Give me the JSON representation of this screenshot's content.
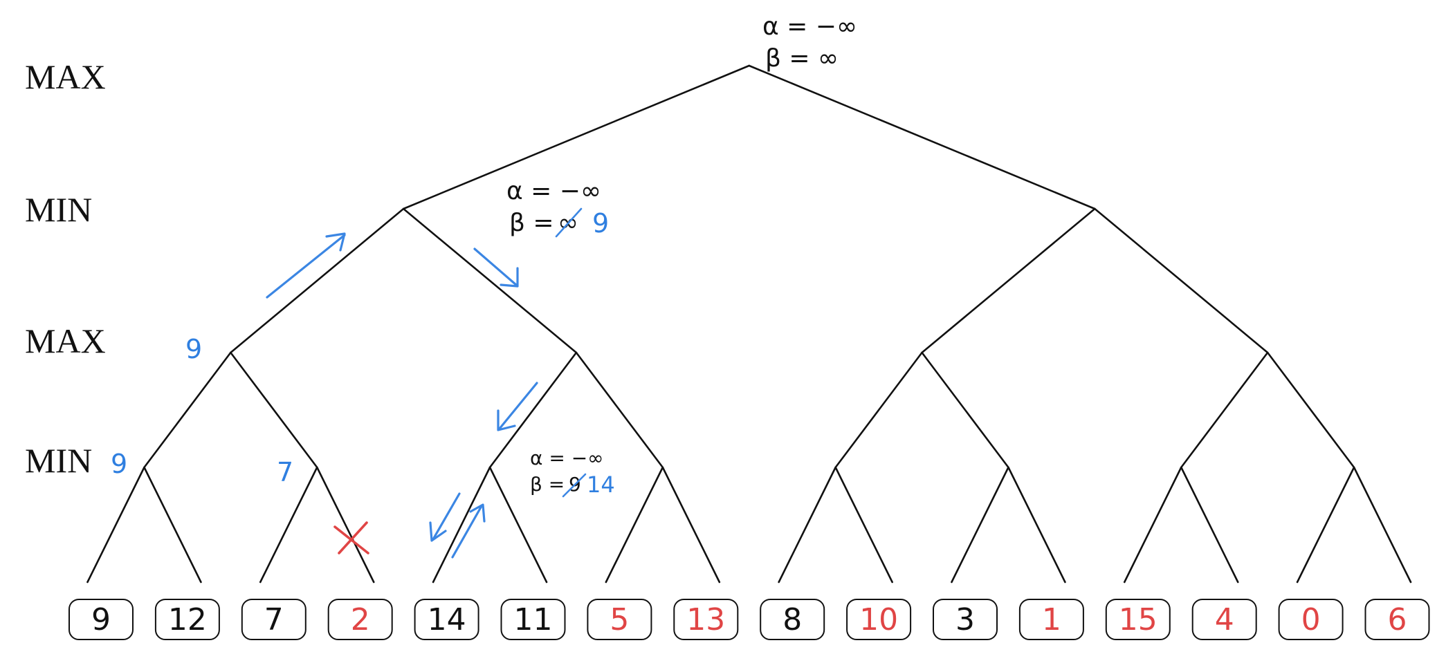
{
  "levels": [
    "MAX",
    "MIN",
    "MAX",
    "MIN"
  ],
  "leaves": [
    {
      "value": "9",
      "color": "#111111"
    },
    {
      "value": "12",
      "color": "#111111"
    },
    {
      "value": "7",
      "color": "#111111"
    },
    {
      "value": "2",
      "color": "#e04545"
    },
    {
      "value": "14",
      "color": "#111111"
    },
    {
      "value": "11",
      "color": "#111111"
    },
    {
      "value": "5",
      "color": "#e04545"
    },
    {
      "value": "13",
      "color": "#e04545"
    },
    {
      "value": "8",
      "color": "#111111"
    },
    {
      "value": "10",
      "color": "#e04545"
    },
    {
      "value": "3",
      "color": "#111111"
    },
    {
      "value": "1",
      "color": "#e04545"
    },
    {
      "value": "15",
      "color": "#e04545"
    },
    {
      "value": "4",
      "color": "#e04545"
    },
    {
      "value": "0",
      "color": "#e04545"
    },
    {
      "value": "6",
      "color": "#e04545"
    }
  ],
  "annotations": {
    "root_alpha": "α = −∞",
    "root_beta": "β = ∞",
    "min1_alpha": "α = −∞",
    "min1_beta": "β = ",
    "min1_beta_old": "∞",
    "min1_beta_new": "9",
    "max1_value": "9",
    "min_a_value": "9",
    "min_b_value": "7",
    "min_c_alpha": "α = −∞",
    "min_c_beta": "β = ",
    "min_c_beta_old": "9",
    "min_c_beta_new": "14"
  },
  "colors": {
    "pruned": "#e04545",
    "annotation_blue": "#2f7fe0",
    "line": "#111111"
  }
}
